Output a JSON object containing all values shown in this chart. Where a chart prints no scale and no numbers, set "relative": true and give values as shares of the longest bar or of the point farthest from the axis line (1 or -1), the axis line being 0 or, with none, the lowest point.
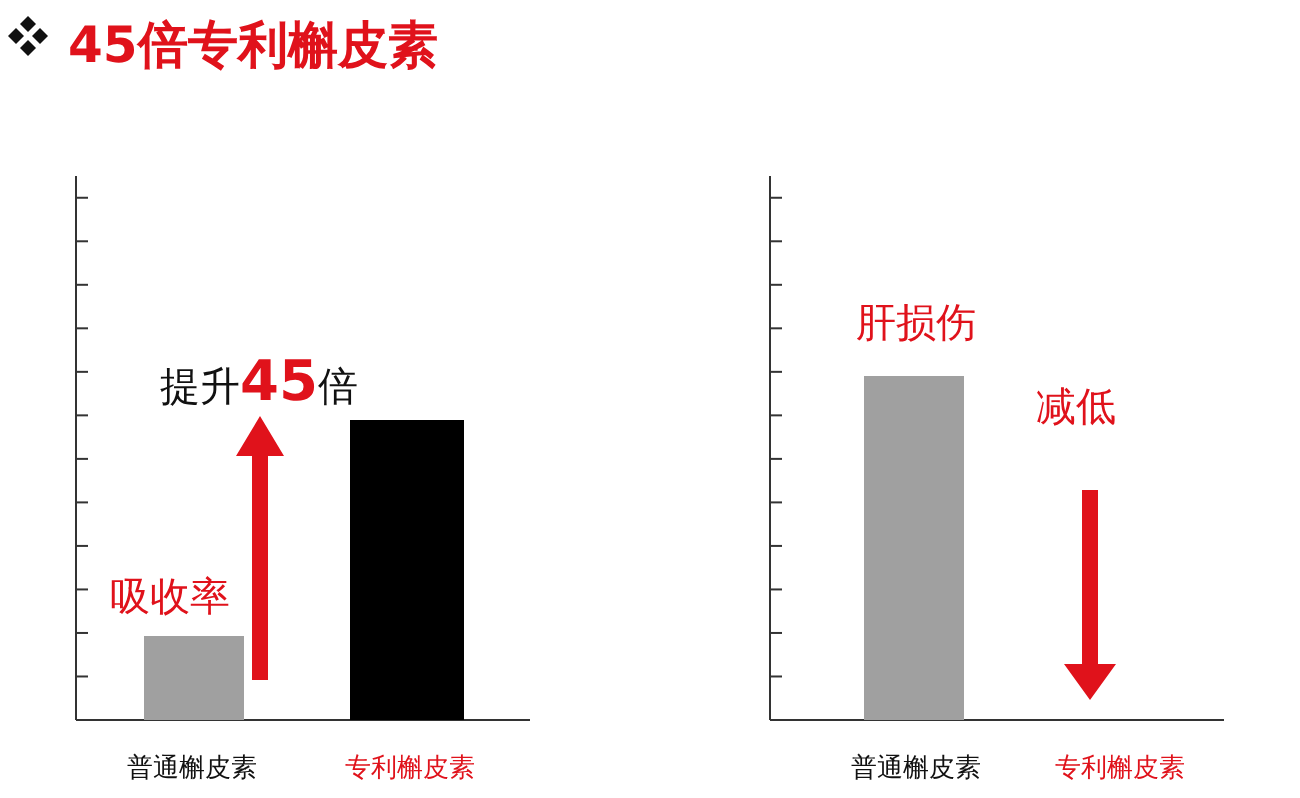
{
  "chart_data": [
    {
      "type": "bar",
      "title": "45倍专利槲皮素",
      "categories": [
        "普通槲皮素",
        "专利槲皮素"
      ],
      "values": [
        0.28,
        1
      ],
      "colors": [
        "#a0a0a0",
        "#000000"
      ],
      "relative": true,
      "annotations": [
        "吸收率",
        "提升45倍"
      ]
    },
    {
      "type": "bar",
      "categories": [
        "普通槲皮素",
        "专利槲皮素"
      ],
      "values": [
        1,
        null
      ],
      "colors": [
        "#a0a0a0",
        null
      ],
      "relative": true,
      "annotations": [
        "肝损伤",
        "减低"
      ]
    }
  ]
}
